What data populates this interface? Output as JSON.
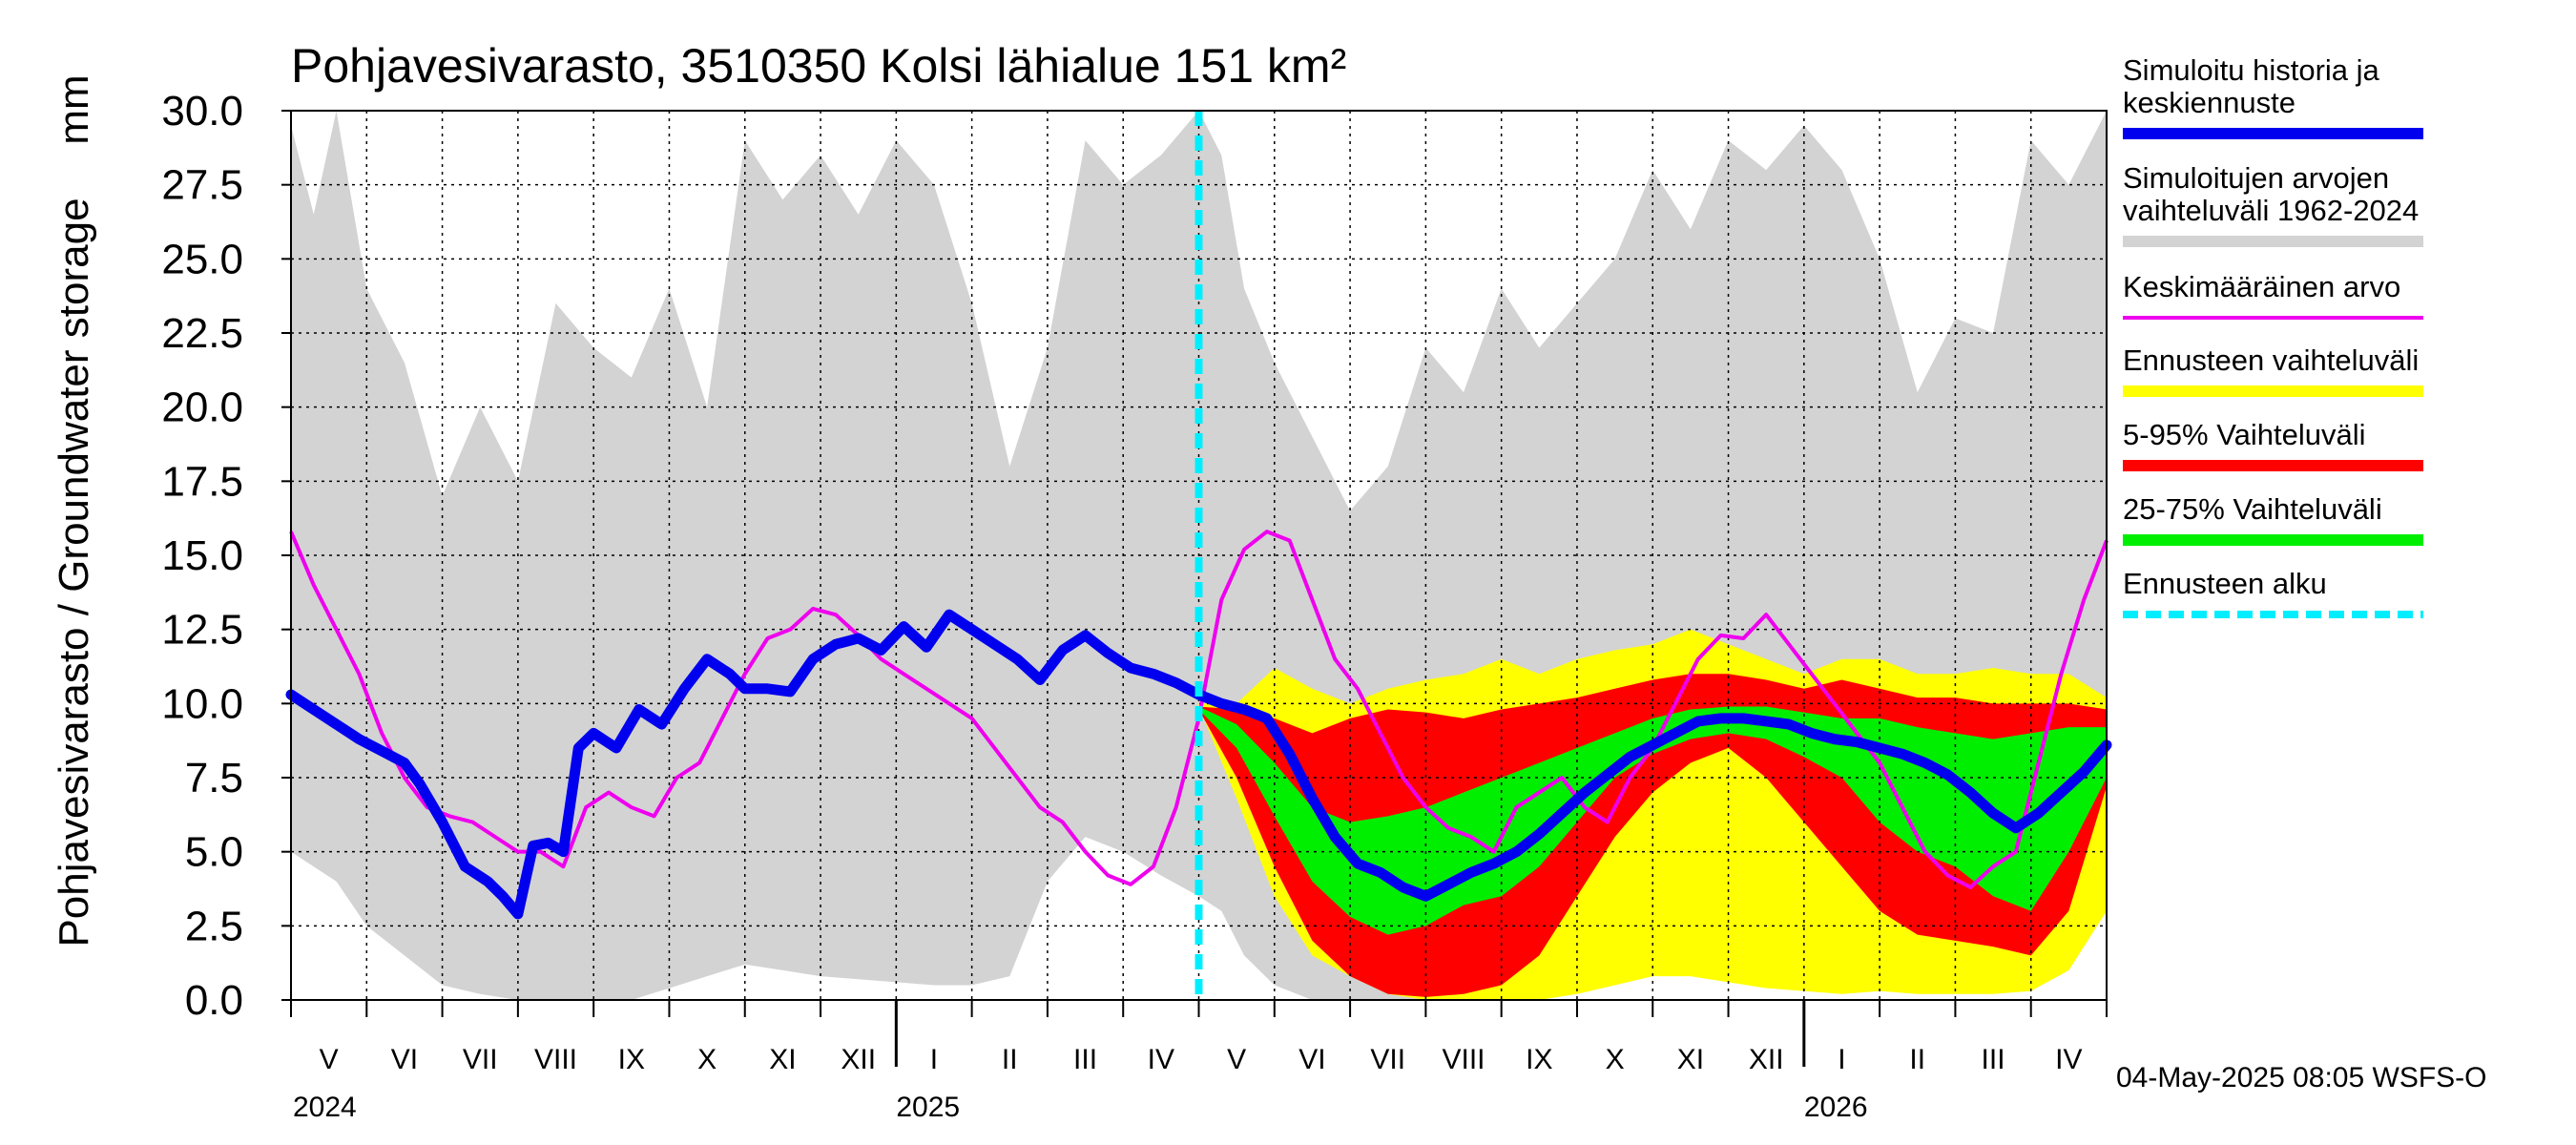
{
  "chart_data": {
    "type": "line",
    "title": "Pohjavesivarasto, 3510350 Kolsi lähialue 151 km²",
    "ylabel": "Pohjavesivarasto / Groundwater storage",
    "yunit": "mm",
    "ylim": [
      0.0,
      30.0
    ],
    "yticks": [
      "0.0",
      "2.5",
      "5.0",
      "7.5",
      "10.0",
      "12.5",
      "15.0",
      "17.5",
      "20.0",
      "22.5",
      "25.0",
      "27.5",
      "30.0"
    ],
    "months": [
      "V",
      "VI",
      "VII",
      "VIII",
      "IX",
      "X",
      "XI",
      "XII",
      "I",
      "II",
      "III",
      "IV",
      "V",
      "VI",
      "VII",
      "VIII",
      "IX",
      "X",
      "XI",
      "XII",
      "I",
      "II",
      "III",
      "IV"
    ],
    "years": [
      "2024",
      "2025",
      "2026"
    ],
    "forecast_start_month": 12,
    "history_range": {
      "x": [
        0,
        0.3,
        0.6,
        1,
        1.5,
        2,
        2.5,
        3,
        3.5,
        4,
        4.5,
        5,
        5.5,
        6,
        6.5,
        7,
        7.5,
        8,
        8.5,
        9,
        9.5,
        10,
        10.5,
        11,
        11.5,
        12,
        12.3,
        12.6,
        13,
        13.5,
        14,
        14.5,
        15,
        15.5,
        16,
        16.5,
        17,
        17.5,
        18,
        18.5,
        19,
        19.5,
        20,
        20.5,
        21,
        21.5,
        22,
        22.5,
        23,
        23.5,
        24
      ],
      "upper": [
        29.5,
        26.5,
        30.0,
        24.0,
        21.5,
        17.0,
        20.0,
        17.5,
        23.5,
        22.0,
        21.0,
        24.0,
        20.0,
        29.0,
        27.0,
        28.5,
        26.5,
        29.0,
        27.5,
        23.5,
        18.0,
        22.0,
        29.0,
        27.5,
        28.5,
        30.0,
        28.5,
        24.0,
        21.5,
        19.0,
        16.5,
        18.0,
        22.0,
        20.5,
        24.0,
        22.0,
        23.5,
        25.0,
        28.0,
        26.0,
        29.0,
        28.0,
        29.5,
        28.0,
        25.0,
        20.5,
        23.0,
        22.5,
        29.0,
        27.5,
        30.0
      ],
      "lower": [
        5.0,
        4.5,
        4.0,
        2.5,
        1.5,
        0.5,
        0.2,
        0.0,
        0.0,
        0.0,
        0.0,
        0.4,
        0.8,
        1.2,
        1.0,
        0.8,
        0.7,
        0.6,
        0.5,
        0.5,
        0.8,
        4.0,
        5.5,
        5.0,
        4.2,
        3.5,
        3.0,
        1.5,
        0.5,
        0.0,
        0.0,
        0.0,
        0.0,
        0.0,
        0.0,
        0.4,
        0.8,
        1.1,
        1.2,
        1.0,
        0.8,
        0.7,
        0.6,
        0.5,
        0.4,
        0.4,
        0.6,
        2.5,
        4.5,
        4.5,
        5.0
      ]
    },
    "series": [
      {
        "name": "Simuloitu historia ja keskiennuste",
        "color": "#0000ee",
        "x": [
          0,
          0.3,
          0.6,
          0.9,
          1.2,
          1.5,
          1.7,
          2.0,
          2.3,
          2.6,
          2.8,
          3.0,
          3.2,
          3.4,
          3.6,
          3.8,
          4.0,
          4.3,
          4.6,
          4.9,
          5.2,
          5.5,
          5.8,
          6.0,
          6.3,
          6.6,
          6.9,
          7.2,
          7.5,
          7.8,
          8.1,
          8.4,
          8.7,
          9.0,
          9.3,
          9.6,
          9.9,
          10.2,
          10.5,
          10.8,
          11.1,
          11.4,
          11.7,
          12.0,
          12.3,
          12.6,
          12.9,
          13.2,
          13.5,
          13.8,
          14.1,
          14.4,
          14.7,
          15.0,
          15.3,
          15.6,
          15.9,
          16.2,
          16.5,
          16.8,
          17.1,
          17.4,
          17.7,
          18.0,
          18.3,
          18.6,
          18.9,
          19.2,
          19.5,
          19.8,
          20.1,
          20.4,
          20.7,
          21.0,
          21.3,
          21.6,
          21.9,
          22.2,
          22.5,
          22.8,
          23.1,
          23.4,
          23.7,
          24.0
        ],
        "y": [
          10.3,
          9.8,
          9.3,
          8.8,
          8.4,
          8.0,
          7.3,
          6.0,
          4.5,
          4.0,
          3.5,
          2.9,
          5.2,
          5.3,
          5.0,
          8.5,
          9.0,
          8.5,
          9.8,
          9.3,
          10.5,
          11.5,
          11.0,
          10.5,
          10.5,
          10.4,
          11.5,
          12.0,
          12.2,
          11.8,
          12.6,
          11.9,
          13.0,
          12.5,
          12.0,
          11.5,
          10.8,
          11.8,
          12.3,
          11.7,
          11.2,
          11.0,
          10.7,
          10.3,
          10.0,
          9.8,
          9.5,
          8.3,
          6.8,
          5.5,
          4.6,
          4.3,
          3.8,
          3.5,
          3.9,
          4.3,
          4.6,
          5.0,
          5.6,
          6.3,
          7.0,
          7.6,
          8.2,
          8.6,
          9.0,
          9.4,
          9.5,
          9.5,
          9.4,
          9.3,
          9.0,
          8.8,
          8.7,
          8.5,
          8.3,
          8.0,
          7.6,
          7.0,
          6.3,
          5.8,
          6.3,
          7.0,
          7.7,
          8.6
        ]
      },
      {
        "name": "Keskimääräinen arvo",
        "color": "#ee00ee",
        "x": [
          0,
          0.3,
          0.6,
          0.9,
          1.2,
          1.5,
          1.8,
          2.1,
          2.4,
          2.7,
          3.0,
          3.3,
          3.6,
          3.9,
          4.2,
          4.5,
          4.8,
          5.1,
          5.4,
          5.7,
          6.0,
          6.3,
          6.6,
          6.9,
          7.2,
          7.5,
          7.8,
          8.1,
          8.4,
          8.7,
          9.0,
          9.3,
          9.6,
          9.9,
          10.2,
          10.5,
          10.8,
          11.1,
          11.4,
          11.7,
          12.0,
          12.3,
          12.6,
          12.9,
          13.2,
          13.5,
          13.8,
          14.1,
          14.4,
          14.7,
          15.0,
          15.3,
          15.6,
          15.9,
          16.2,
          16.5,
          16.8,
          17.1,
          17.4,
          17.7,
          18.0,
          18.3,
          18.6,
          18.9,
          19.2,
          19.5,
          19.8,
          20.1,
          20.4,
          20.7,
          21.0,
          21.3,
          21.6,
          21.9,
          22.2,
          22.5,
          22.8,
          23.1,
          23.4,
          23.7,
          24.0
        ],
        "y": [
          15.8,
          14.0,
          12.5,
          11.0,
          9.0,
          7.5,
          6.5,
          6.2,
          6.0,
          5.5,
          5.0,
          5.0,
          4.5,
          6.5,
          7.0,
          6.5,
          6.2,
          7.5,
          8.0,
          9.5,
          11.0,
          12.2,
          12.5,
          13.2,
          13.0,
          12.3,
          11.5,
          11.0,
          10.5,
          10.0,
          9.5,
          8.5,
          7.5,
          6.5,
          6.0,
          5.0,
          4.2,
          3.9,
          4.5,
          6.5,
          9.5,
          13.5,
          15.2,
          15.8,
          15.5,
          13.5,
          11.5,
          10.5,
          9.0,
          7.5,
          6.5,
          5.8,
          5.5,
          5.0,
          6.5,
          7.0,
          7.5,
          6.5,
          6.0,
          7.5,
          8.5,
          10.0,
          11.5,
          12.3,
          12.2,
          13.0,
          12.0,
          11.0,
          10.0,
          9.0,
          8.0,
          6.5,
          5.0,
          4.2,
          3.8,
          4.5,
          5.0,
          8.0,
          11.0,
          13.5,
          15.5
        ],
        "post_start_x": [
          12.0,
          12.3,
          12.6,
          12.9,
          13.2,
          13.5,
          13.8,
          14.1,
          14.4,
          14.7,
          15.0,
          15.3,
          15.6,
          15.9,
          16.2,
          16.5,
          16.8,
          17.1,
          17.4,
          17.7,
          18.0,
          18.3,
          18.6,
          18.9,
          19.2,
          19.5,
          19.8,
          20.1,
          20.4,
          20.7,
          21.0,
          21.3,
          21.6,
          21.9,
          22.2,
          22.5,
          22.8,
          23.1,
          23.4,
          23.7,
          24.0
        ]
      }
    ],
    "forecast_bands": [
      {
        "name": "Ennusteen vaihteluväli",
        "color": "#ffff00",
        "x": [
          12.0,
          12.5,
          13.0,
          13.5,
          14.0,
          14.5,
          15.0,
          15.5,
          16.0,
          16.5,
          17.0,
          17.5,
          18.0,
          18.5,
          19.0,
          19.5,
          20.0,
          20.5,
          21.0,
          21.5,
          22.0,
          22.5,
          23.0,
          23.5,
          24.0
        ],
        "upper": [
          10.0,
          10.0,
          11.2,
          10.5,
          10.0,
          10.5,
          10.8,
          11.0,
          11.5,
          11.0,
          11.5,
          11.8,
          12.0,
          12.5,
          12.0,
          11.5,
          11.0,
          11.5,
          11.5,
          11.0,
          11.0,
          11.2,
          11.0,
          11.0,
          10.2
        ],
        "lower": [
          9.9,
          6.8,
          3.5,
          1.5,
          0.8,
          0.2,
          0.0,
          0.0,
          0.0,
          0.0,
          0.2,
          0.5,
          0.8,
          0.8,
          0.6,
          0.4,
          0.3,
          0.2,
          0.3,
          0.2,
          0.2,
          0.2,
          0.3,
          1.0,
          3.0
        ]
      },
      {
        "name": "5-95% Vaihteluväli",
        "color": "#ff0000",
        "x": [
          12.0,
          12.5,
          13.0,
          13.5,
          14.0,
          14.5,
          15.0,
          15.5,
          16.0,
          16.5,
          17.0,
          17.5,
          18.0,
          18.5,
          19.0,
          19.5,
          20.0,
          20.5,
          21.0,
          21.5,
          22.0,
          22.5,
          23.0,
          23.5,
          24.0
        ],
        "upper": [
          9.9,
          9.8,
          9.5,
          9.0,
          9.5,
          9.8,
          9.7,
          9.5,
          9.8,
          10.0,
          10.2,
          10.5,
          10.8,
          11.0,
          11.0,
          10.8,
          10.5,
          10.8,
          10.5,
          10.2,
          10.2,
          10.0,
          10.0,
          10.0,
          9.8
        ],
        "lower": [
          9.8,
          7.5,
          4.5,
          2.0,
          0.8,
          0.2,
          0.1,
          0.2,
          0.5,
          1.5,
          3.5,
          5.5,
          7.0,
          8.0,
          8.5,
          7.5,
          6.0,
          4.5,
          3.0,
          2.2,
          2.0,
          1.8,
          1.5,
          3.0,
          7.2
        ]
      },
      {
        "name": "25-75% Vaihteluväli",
        "color": "#00ee00",
        "x": [
          12.0,
          12.5,
          13.0,
          13.5,
          14.0,
          14.5,
          15.0,
          15.5,
          16.0,
          16.5,
          17.0,
          17.5,
          18.0,
          18.5,
          19.0,
          19.5,
          20.0,
          20.5,
          21.0,
          21.5,
          22.0,
          22.5,
          23.0,
          23.5,
          24.0
        ],
        "upper": [
          9.9,
          9.3,
          8.0,
          6.5,
          6.0,
          6.2,
          6.5,
          7.0,
          7.5,
          8.0,
          8.5,
          9.0,
          9.5,
          9.8,
          9.9,
          9.9,
          9.7,
          9.5,
          9.5,
          9.2,
          9.0,
          8.8,
          9.0,
          9.2,
          9.2
        ],
        "lower": [
          9.8,
          8.5,
          6.2,
          4.0,
          2.8,
          2.2,
          2.5,
          3.2,
          3.5,
          4.5,
          6.0,
          7.5,
          8.3,
          8.8,
          9.0,
          8.8,
          8.2,
          7.5,
          6.0,
          5.0,
          4.5,
          3.5,
          3.0,
          5.0,
          7.5
        ]
      }
    ],
    "legend": [
      {
        "label": "Simuloitu historia ja keskiennuste",
        "color": "#0000ee",
        "style": "solid"
      },
      {
        "label": "Simuloitujen arvojen vaihteluväli 1962-2024",
        "color": "#d3d3d3",
        "style": "solid"
      },
      {
        "label": "Keskimääräinen arvo",
        "color": "#ee00ee",
        "style": "thin"
      },
      {
        "label": "Ennusteen vaihteluväli",
        "color": "#ffff00",
        "style": "solid"
      },
      {
        "label": "5-95% Vaihteluväli",
        "color": "#ff0000",
        "style": "solid"
      },
      {
        "label": "25-75% Vaihteluväli",
        "color": "#00ee00",
        "style": "solid"
      },
      {
        "label": "Ennusteen alku",
        "color": "#00eeff",
        "style": "dashed"
      }
    ],
    "footer": "04-May-2025 08:05 WSFS-O"
  }
}
